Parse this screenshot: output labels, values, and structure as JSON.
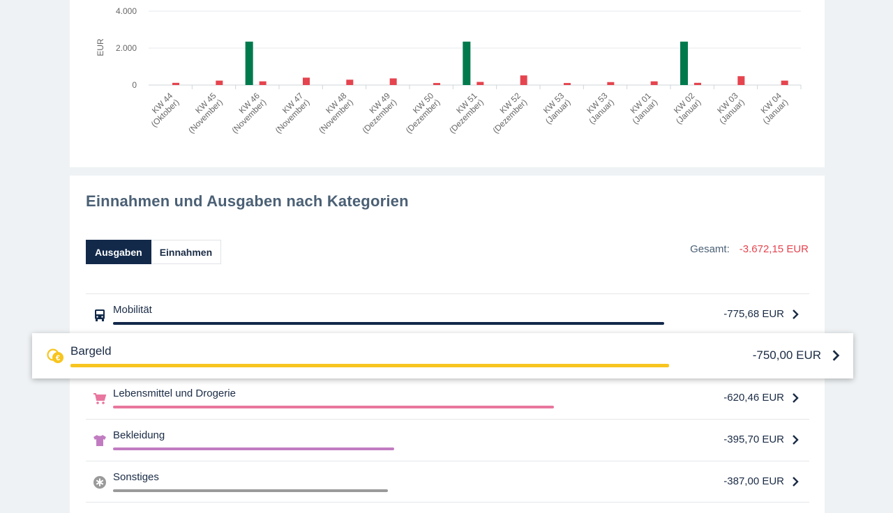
{
  "chart": {
    "y_axis_label": "EUR",
    "chart_data": {
      "type": "bar",
      "ylabel": "EUR",
      "ylim": [
        0,
        4000
      ],
      "yticks": [
        "0",
        "2.000",
        "4.000"
      ],
      "categories": [
        [
          "KW 44",
          "(Oktober)"
        ],
        [
          "KW 45",
          "(November)"
        ],
        [
          "KW 46",
          "(November)"
        ],
        [
          "KW 47",
          "(November)"
        ],
        [
          "KW 48",
          "(November)"
        ],
        [
          "KW 49",
          "(Dezember)"
        ],
        [
          "KW 50",
          "(Dezember)"
        ],
        [
          "KW 51",
          "(Dezember)"
        ],
        [
          "KW 52",
          "(Dezember)"
        ],
        [
          "KW 53",
          "(Januar)"
        ],
        [
          "KW 53",
          "(Januar)"
        ],
        [
          "KW 01",
          "(Januar)"
        ],
        [
          "KW 02",
          "(Januar)"
        ],
        [
          "KW 03",
          "(Januar)"
        ],
        [
          "KW 04",
          "(Januar)"
        ]
      ],
      "series": [
        {
          "color": "#007a4d",
          "values": [
            0,
            0,
            2350,
            0,
            0,
            0,
            0,
            2350,
            0,
            0,
            0,
            0,
            2350,
            0,
            0
          ]
        },
        {
          "color": "#e5444e",
          "values": [
            120,
            240,
            200,
            400,
            290,
            360,
            110,
            170,
            520,
            110,
            160,
            200,
            120,
            480,
            240
          ]
        }
      ]
    }
  },
  "categories_section": {
    "title": "Einnahmen und Ausgaben nach Kategorien",
    "tabs": [
      "Ausgaben",
      "Einnahmen"
    ],
    "total_label": "Gesamt:",
    "total_value": "-3.672,15 EUR",
    "items": [
      {
        "label": "Mobilität",
        "amount": "-775,68 EUR",
        "icon": "bus-icon",
        "color": "#12294a",
        "share": 1.0
      },
      {
        "label": "Bargeld",
        "amount": "-750,00 EUR",
        "icon": "coins-icon",
        "color": "#f7c51e",
        "share": 0.967
      },
      {
        "label": "Lebensmittel und Drogerie",
        "amount": "-620,46 EUR",
        "icon": "cart-icon",
        "color": "#e8769e",
        "share": 0.8
      },
      {
        "label": "Bekleidung",
        "amount": "-395,70 EUR",
        "icon": "shirt-icon",
        "color": "#c17cc1",
        "share": 0.51
      },
      {
        "label": "Sonstiges",
        "amount": "-387,00 EUR",
        "icon": "asterisk-icon",
        "color": "#9a9a9a",
        "share": 0.499
      }
    ]
  }
}
